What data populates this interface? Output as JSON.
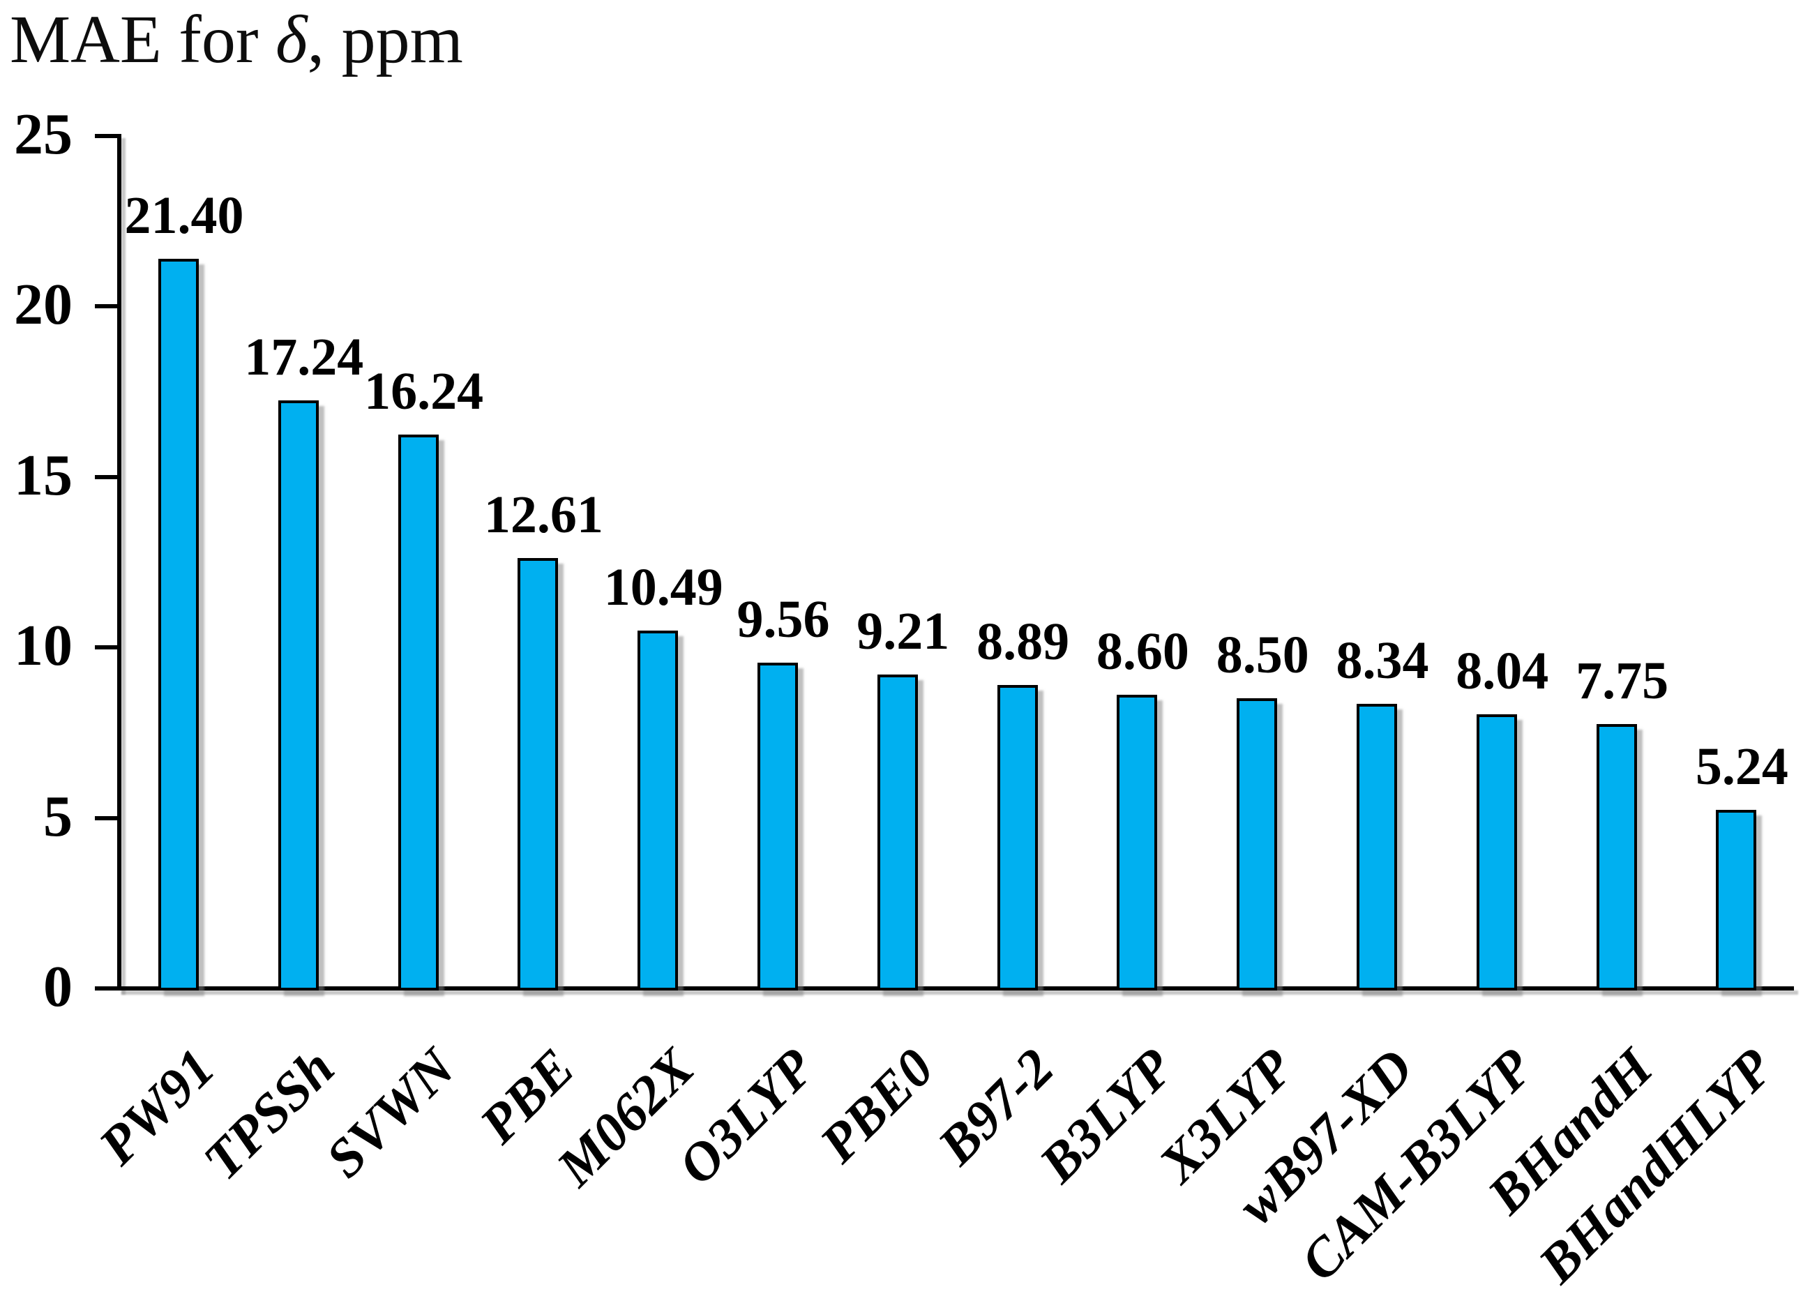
{
  "figure": {
    "title": {
      "full": "MAE for δ̃, ppm",
      "prefix": "MAE for ",
      "delta": "δ",
      "tilde": "˜",
      "suffix": ", ppm"
    }
  },
  "chart_data": {
    "type": "bar",
    "title": "MAE for δ̃, ppm",
    "xlabel": "",
    "ylabel": "",
    "categories": [
      "PW91",
      "TPSSh",
      "SVWN",
      "PBE",
      "M062X",
      "O3LYP",
      "PBE0",
      "B97-2",
      "B3LYP",
      "X3LYP",
      "wB97-XD",
      "CAM-B3LYP",
      "BHandH",
      "BHandHLYP"
    ],
    "values": [
      21.4,
      17.24,
      16.24,
      12.61,
      10.49,
      9.56,
      9.21,
      8.89,
      8.6,
      8.5,
      8.34,
      8.04,
      7.75,
      5.24
    ],
    "value_labels": [
      "21.40",
      "17.24",
      "16.24",
      "12.61",
      "10.49",
      "9.56",
      "9.21",
      "8.89",
      "8.60",
      "8.50",
      "8.34",
      "8.04",
      "7.75",
      "5.24"
    ],
    "y_ticks": [
      0,
      5,
      10,
      15,
      20,
      25
    ],
    "y_tick_labels": [
      "0",
      "5",
      "10",
      "15",
      "20",
      "25"
    ],
    "ylim": [
      0,
      25
    ],
    "grid": false,
    "legend_position": "none",
    "bar_color": "#00B0F0",
    "bar_border_color": "#000000",
    "axis_color": "#000000",
    "text_color": "#000000",
    "shadow_color": "#828282",
    "background_color": "#ffffff"
  }
}
